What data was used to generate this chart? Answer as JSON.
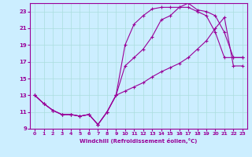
{
  "xlabel": "Windchill (Refroidissement éolien,°C)",
  "bg_color": "#cceeff",
  "line_color": "#990099",
  "xlim": [
    -0.5,
    23.5
  ],
  "ylim": [
    9,
    24
  ],
  "xticks": [
    0,
    1,
    2,
    3,
    4,
    5,
    6,
    7,
    8,
    9,
    10,
    11,
    12,
    13,
    14,
    15,
    16,
    17,
    18,
    19,
    20,
    21,
    22,
    23
  ],
  "yticks": [
    9,
    11,
    13,
    15,
    17,
    19,
    21,
    23
  ],
  "line1_x": [
    0,
    1,
    2,
    3,
    4,
    5,
    6,
    7,
    8,
    9,
    10,
    11,
    12,
    13,
    14,
    15,
    16,
    17,
    18,
    19,
    20,
    21,
    22,
    23
  ],
  "line1_y": [
    13.0,
    12.0,
    11.2,
    10.7,
    10.7,
    10.5,
    10.7,
    9.5,
    11.0,
    13.0,
    19.0,
    21.5,
    22.5,
    23.3,
    23.5,
    23.5,
    23.5,
    23.5,
    23.0,
    22.5,
    20.5,
    17.5,
    17.5,
    17.5
  ],
  "line2_x": [
    0,
    1,
    2,
    3,
    4,
    5,
    6,
    7,
    8,
    9,
    10,
    11,
    12,
    13,
    14,
    15,
    16,
    17,
    18,
    19,
    20,
    21,
    22,
    23
  ],
  "line2_y": [
    13.0,
    12.0,
    11.2,
    10.7,
    10.7,
    10.5,
    10.7,
    9.5,
    11.0,
    13.0,
    16.5,
    17.5,
    18.5,
    20.0,
    22.0,
    22.5,
    23.5,
    24.0,
    23.2,
    23.0,
    22.5,
    20.5,
    17.5,
    17.5
  ],
  "line3_x": [
    0,
    1,
    2,
    3,
    4,
    5,
    6,
    7,
    8,
    9,
    10,
    11,
    12,
    13,
    14,
    15,
    16,
    17,
    18,
    19,
    20,
    21,
    22,
    23
  ],
  "line3_y": [
    13.0,
    12.0,
    11.2,
    10.7,
    10.7,
    10.5,
    10.7,
    9.5,
    11.0,
    13.0,
    13.5,
    14.0,
    14.5,
    15.2,
    15.8,
    16.3,
    16.8,
    17.5,
    18.5,
    19.5,
    21.0,
    22.3,
    16.5,
    16.5
  ]
}
